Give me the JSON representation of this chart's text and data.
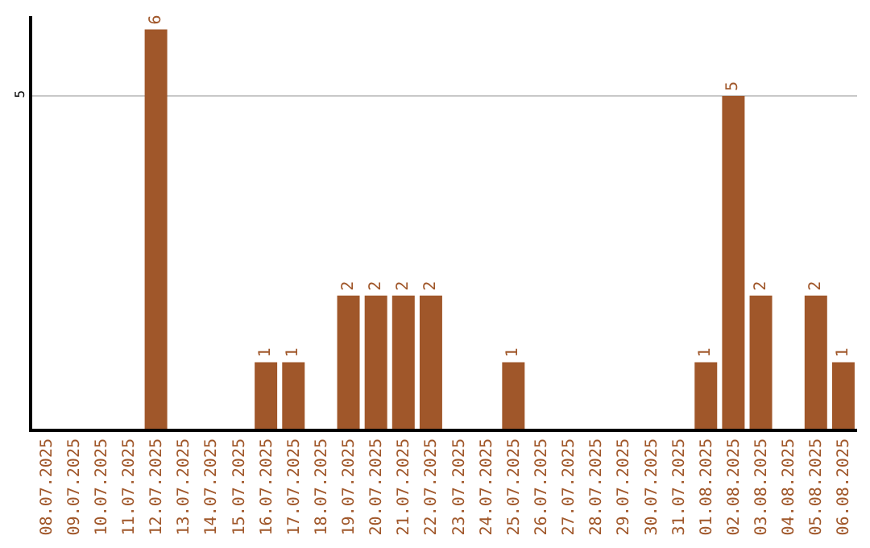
{
  "chart_data": {
    "type": "bar",
    "categories": [
      "08.07.2025",
      "09.07.2025",
      "10.07.2025",
      "11.07.2025",
      "12.07.2025",
      "13.07.2025",
      "14.07.2025",
      "15.07.2025",
      "16.07.2025",
      "17.07.2025",
      "18.07.2025",
      "19.07.2025",
      "20.07.2025",
      "21.07.2025",
      "22.07.2025",
      "23.07.2025",
      "24.07.2025",
      "25.07.2025",
      "26.07.2025",
      "27.07.2025",
      "28.07.2025",
      "29.07.2025",
      "30.07.2025",
      "31.07.2025",
      "01.08.2025",
      "02.08.2025",
      "03.08.2025",
      "04.08.2025",
      "05.08.2025",
      "06.08.2025"
    ],
    "values": [
      0,
      0,
      0,
      0,
      6,
      0,
      0,
      0,
      1,
      1,
      0,
      2,
      2,
      2,
      2,
      0,
      0,
      1,
      0,
      0,
      0,
      0,
      0,
      0,
      1,
      5,
      2,
      0,
      2,
      1
    ],
    "value_labels": [
      null,
      null,
      null,
      null,
      "6",
      null,
      null,
      null,
      "1",
      "1",
      null,
      "2",
      "2",
      "2",
      "2",
      null,
      null,
      "1",
      null,
      null,
      null,
      null,
      null,
      null,
      "1",
      "5",
      "2",
      null,
      "2",
      "1"
    ],
    "color": "#a0572a",
    "ylim": [
      0,
      6.2
    ],
    "yticks": [
      5
    ],
    "grid": "y",
    "legend": false
  }
}
